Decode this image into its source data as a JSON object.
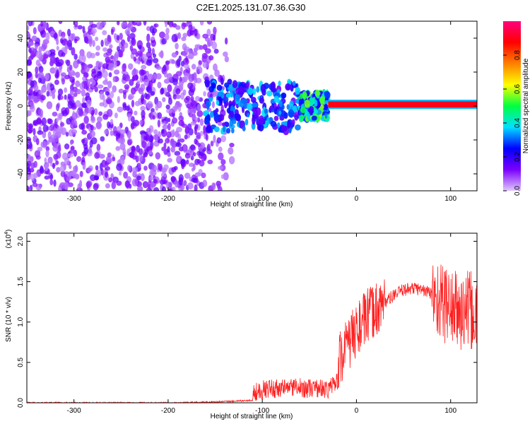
{
  "chart_data": [
    {
      "type": "heatmap",
      "title": "C2E1.2025.131.07.36.G30",
      "xlabel": "Height of straight line (km)",
      "ylabel": "Frequency (Hz)",
      "xlim": [
        -350,
        128
      ],
      "ylim": [
        -50,
        50
      ],
      "xticks": [
        -300,
        -200,
        -100,
        0,
        100
      ],
      "yticks": [
        -40,
        -20,
        0,
        20,
        40
      ],
      "colorbar": {
        "label": "Normalized spectral amplitude",
        "range": [
          0.0,
          1.0
        ],
        "ticks": [
          0.0,
          0.2,
          0.4,
          0.6,
          0.8
        ],
        "colormap": [
          "#e0c8ff",
          "#7a00ff",
          "#0000ff",
          "#00e0ff",
          "#00ff40",
          "#ffff00",
          "#ff8000",
          "#ff0000",
          "#ff0080"
        ]
      },
      "regions": [
        {
          "x": [
            -350,
            -130
          ],
          "freq_span": [
            -50,
            50
          ],
          "amplitude": 0.12,
          "description_level": "broadband low"
        },
        {
          "x": [
            -160,
            -60
          ],
          "freq_span": [
            -15,
            15
          ],
          "amplitude": 0.3
        },
        {
          "x": [
            -60,
            -30
          ],
          "freq_span": [
            -8,
            8
          ],
          "amplitude": 0.45
        },
        {
          "x": [
            -30,
            128
          ],
          "freq_span": [
            0,
            2
          ],
          "amplitude": 0.9
        }
      ]
    },
    {
      "type": "line",
      "title": "",
      "xlabel": "Height of straight line (km)",
      "ylabel": "SNR (10 * v/v)",
      "yscale_label": "(x10^4)",
      "xlim": [
        -350,
        128
      ],
      "ylim": [
        0,
        2.1
      ],
      "xticks": [
        -300,
        -200,
        -100,
        0,
        100
      ],
      "yticks": [
        0.0,
        0.5,
        1.0,
        1.5,
        2.0
      ],
      "line_color": "#ff2020",
      "series": [
        {
          "name": "",
          "x": [
            -350,
            -300,
            -250,
            -200,
            -150,
            -110,
            -100,
            -90,
            -80,
            -70,
            -60,
            -50,
            -40,
            -30,
            -20,
            -10,
            0,
            10,
            20,
            30,
            40,
            50,
            60,
            70,
            80,
            90,
            100,
            110,
            120,
            128
          ],
          "y": [
            0.0,
            0.0,
            0.0,
            0.0,
            0.01,
            0.03,
            0.12,
            0.2,
            0.2,
            0.25,
            0.22,
            0.2,
            0.2,
            0.15,
            0.5,
            0.7,
            0.9,
            1.05,
            1.15,
            1.25,
            1.33,
            1.4,
            1.42,
            1.4,
            1.35,
            1.25,
            1.2,
            1.1,
            1.15,
            1.05
          ]
        }
      ],
      "noise_amplitude": [
        {
          "x": [
            -350,
            -110
          ],
          "amp": 0.01
        },
        {
          "x": [
            -110,
            -20
          ],
          "amp": 0.15
        },
        {
          "x": [
            -20,
            30
          ],
          "amp": 0.35
        },
        {
          "x": [
            30,
            80
          ],
          "amp": 0.08
        },
        {
          "x": [
            80,
            128
          ],
          "amp": 0.5
        }
      ]
    }
  ]
}
